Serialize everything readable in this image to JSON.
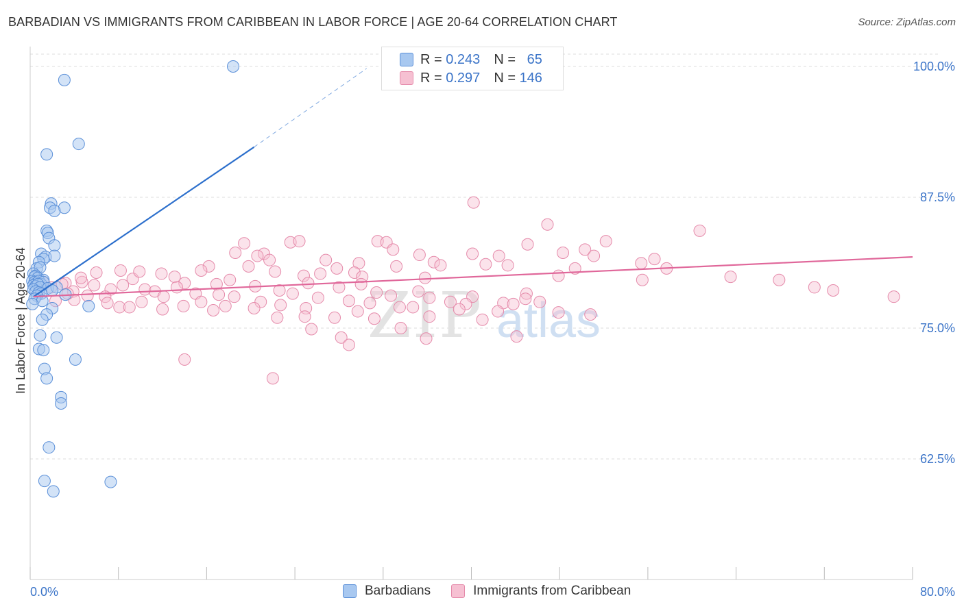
{
  "header": {
    "title": "BARBADIAN VS IMMIGRANTS FROM CARIBBEAN IN LABOR FORCE | AGE 20-64 CORRELATION CHART",
    "source": "Source: ZipAtlas.com"
  },
  "legend": {
    "r_label": "R =",
    "n_label": "N =",
    "series1_r": "0.243",
    "series1_n": "65",
    "series2_r": "0.297",
    "series2_n": "146"
  },
  "watermark": {
    "zip": "ZIP",
    "atlas": "atlas"
  },
  "colors": {
    "blue_fill": "#a8c8f0",
    "blue_stroke": "#5a8fd8",
    "blue_line": "#2c6fcc",
    "pink_fill": "#f6c0d2",
    "pink_stroke": "#e58aaa",
    "pink_line": "#e0679a",
    "tick_label": "#3b74c8",
    "grid": "#dddddd"
  },
  "chart_data": {
    "type": "scatter",
    "title": "BARBADIAN VS IMMIGRANTS FROM CARIBBEAN IN LABOR FORCE | AGE 20-64 CORRELATION CHART",
    "xlabel": "",
    "ylabel": "In Labor Force | Age 20-64",
    "xlim": [
      0,
      80
    ],
    "ylim": [
      50,
      102
    ],
    "x_tick_labels": [
      "0.0%",
      "80.0%"
    ],
    "y_ticks": [
      62.5,
      75.0,
      87.5,
      100.0
    ],
    "y_tick_labels": [
      "62.5%",
      "75.0%",
      "87.5%",
      "100.0%"
    ],
    "grid": true,
    "legend_position": "top-center",
    "series": [
      {
        "name": "Barbadians",
        "color": "#a8c8f0",
        "r": 0.243,
        "n": 65,
        "trend": {
          "x": [
            0.3,
            20.3
          ],
          "y": [
            78.0,
            92.3
          ],
          "dashed_to": [
            30.5,
            99.8
          ]
        },
        "points": [
          [
            18.4,
            100.0
          ],
          [
            3.1,
            98.7
          ],
          [
            4.4,
            92.6
          ],
          [
            1.5,
            91.6
          ],
          [
            1.9,
            86.9
          ],
          [
            1.8,
            86.5
          ],
          [
            3.1,
            86.5
          ],
          [
            2.2,
            86.2
          ],
          [
            1.5,
            84.3
          ],
          [
            1.6,
            84.1
          ],
          [
            1.7,
            83.6
          ],
          [
            2.2,
            82.9
          ],
          [
            1.0,
            82.1
          ],
          [
            1.4,
            81.8
          ],
          [
            1.2,
            81.6
          ],
          [
            2.2,
            81.9
          ],
          [
            0.8,
            81.3
          ],
          [
            0.6,
            80.7
          ],
          [
            0.9,
            80.8
          ],
          [
            0.3,
            80.2
          ],
          [
            0.5,
            80.0
          ],
          [
            0.4,
            79.9
          ],
          [
            0.7,
            79.8
          ],
          [
            1.2,
            79.6
          ],
          [
            0.2,
            79.5
          ],
          [
            0.4,
            79.4
          ],
          [
            0.6,
            79.3
          ],
          [
            0.8,
            79.5
          ],
          [
            1.0,
            79.2
          ],
          [
            1.2,
            79.4
          ],
          [
            0.3,
            79.1
          ],
          [
            0.5,
            79.0
          ],
          [
            0.7,
            79.2
          ],
          [
            0.9,
            78.9
          ],
          [
            0.3,
            78.7
          ],
          [
            1.6,
            78.8
          ],
          [
            0.5,
            78.5
          ],
          [
            0.8,
            78.4
          ],
          [
            2.4,
            78.9
          ],
          [
            2.0,
            78.6
          ],
          [
            1.0,
            78.3
          ],
          [
            0.6,
            78.1
          ],
          [
            3.2,
            78.2
          ],
          [
            0.4,
            77.8
          ],
          [
            1.1,
            77.6
          ],
          [
            0.2,
            77.3
          ],
          [
            5.3,
            77.1
          ],
          [
            2.0,
            76.9
          ],
          [
            1.5,
            76.3
          ],
          [
            1.1,
            75.8
          ],
          [
            0.9,
            74.3
          ],
          [
            2.4,
            74.1
          ],
          [
            0.8,
            73.0
          ],
          [
            1.2,
            72.9
          ],
          [
            4.1,
            72.0
          ],
          [
            1.3,
            71.1
          ],
          [
            1.5,
            70.2
          ],
          [
            2.8,
            68.4
          ],
          [
            2.8,
            67.8
          ],
          [
            1.7,
            63.6
          ],
          [
            1.3,
            60.4
          ],
          [
            7.3,
            60.3
          ],
          [
            2.1,
            59.4
          ]
        ]
      },
      {
        "name": "Immigrants from Caribbean",
        "color": "#f6c0d2",
        "r": 0.297,
        "n": 146,
        "trend": {
          "x": [
            0.3,
            80.0
          ],
          "y": [
            78.0,
            81.8
          ]
        },
        "points": [
          [
            40.2,
            87.0
          ],
          [
            46.9,
            84.9
          ],
          [
            60.7,
            84.3
          ],
          [
            19.4,
            83.1
          ],
          [
            23.6,
            83.2
          ],
          [
            24.4,
            83.3
          ],
          [
            31.5,
            83.3
          ],
          [
            32.3,
            83.2
          ],
          [
            45.1,
            83.0
          ],
          [
            52.2,
            83.3
          ],
          [
            50.3,
            82.5
          ],
          [
            32.9,
            82.5
          ],
          [
            35.3,
            82.0
          ],
          [
            21.2,
            82.1
          ],
          [
            20.6,
            81.9
          ],
          [
            18.6,
            82.2
          ],
          [
            40.1,
            82.1
          ],
          [
            42.5,
            81.9
          ],
          [
            48.3,
            82.2
          ],
          [
            51.1,
            81.9
          ],
          [
            56.6,
            81.6
          ],
          [
            26.8,
            81.5
          ],
          [
            36.6,
            81.3
          ],
          [
            29.8,
            81.2
          ],
          [
            21.7,
            81.5
          ],
          [
            41.3,
            81.1
          ],
          [
            37.2,
            81.0
          ],
          [
            43.3,
            81.0
          ],
          [
            55.4,
            81.2
          ],
          [
            27.8,
            80.7
          ],
          [
            19.8,
            80.9
          ],
          [
            33.2,
            80.9
          ],
          [
            16.2,
            80.9
          ],
          [
            49.4,
            80.7
          ],
          [
            26.3,
            80.2
          ],
          [
            15.5,
            80.5
          ],
          [
            47.9,
            80.0
          ],
          [
            22.2,
            80.4
          ],
          [
            24.8,
            80.0
          ],
          [
            29.4,
            80.3
          ],
          [
            57.7,
            80.7
          ],
          [
            11.9,
            80.2
          ],
          [
            8.2,
            80.5
          ],
          [
            13.1,
            79.9
          ],
          [
            30.1,
            79.9
          ],
          [
            35.8,
            79.8
          ],
          [
            9.3,
            79.7
          ],
          [
            4.7,
            79.4
          ],
          [
            3.2,
            79.3
          ],
          [
            18.1,
            79.6
          ],
          [
            14.0,
            79.3
          ],
          [
            5.8,
            79.1
          ],
          [
            16.9,
            79.2
          ],
          [
            30.0,
            79.2
          ],
          [
            25.2,
            79.3
          ],
          [
            20.4,
            79.0
          ],
          [
            28.0,
            78.9
          ],
          [
            8.4,
            79.1
          ],
          [
            13.3,
            78.9
          ],
          [
            7.3,
            78.7
          ],
          [
            10.4,
            78.7
          ],
          [
            3.9,
            78.5
          ],
          [
            11.3,
            78.5
          ],
          [
            15.0,
            78.3
          ],
          [
            17.1,
            78.2
          ],
          [
            22.6,
            78.6
          ],
          [
            23.8,
            78.3
          ],
          [
            31.4,
            78.4
          ],
          [
            35.2,
            78.5
          ],
          [
            45.0,
            78.3
          ],
          [
            55.5,
            79.6
          ],
          [
            63.5,
            79.9
          ],
          [
            67.9,
            79.6
          ],
          [
            71.1,
            78.9
          ],
          [
            72.8,
            78.6
          ],
          [
            78.3,
            78.0
          ],
          [
            6.8,
            78.0
          ],
          [
            12.1,
            78.0
          ],
          [
            18.5,
            78.0
          ],
          [
            26.1,
            77.9
          ],
          [
            32.7,
            78.1
          ],
          [
            36.2,
            77.9
          ],
          [
            40.1,
            78.0
          ],
          [
            44.9,
            77.8
          ],
          [
            2.3,
            77.6
          ],
          [
            4.0,
            77.7
          ],
          [
            10.1,
            77.5
          ],
          [
            15.5,
            77.5
          ],
          [
            20.9,
            77.5
          ],
          [
            28.9,
            77.6
          ],
          [
            38.1,
            77.5
          ],
          [
            42.9,
            77.4
          ],
          [
            46.2,
            77.5
          ],
          [
            8.1,
            77.0
          ],
          [
            13.9,
            77.1
          ],
          [
            17.7,
            77.1
          ],
          [
            22.7,
            77.2
          ],
          [
            30.8,
            77.4
          ],
          [
            33.5,
            77.0
          ],
          [
            39.5,
            77.3
          ],
          [
            43.8,
            77.3
          ],
          [
            12.0,
            76.8
          ],
          [
            16.6,
            76.7
          ],
          [
            20.3,
            76.9
          ],
          [
            25.0,
            76.9
          ],
          [
            29.7,
            76.6
          ],
          [
            34.7,
            77.0
          ],
          [
            38.9,
            76.8
          ],
          [
            42.4,
            76.6
          ],
          [
            47.9,
            76.5
          ],
          [
            50.8,
            76.3
          ],
          [
            36.2,
            76.1
          ],
          [
            24.9,
            76.1
          ],
          [
            22.4,
            76.0
          ],
          [
            27.6,
            76.0
          ],
          [
            31.2,
            75.9
          ],
          [
            41.0,
            75.8
          ],
          [
            33.6,
            75.0
          ],
          [
            25.5,
            74.9
          ],
          [
            44.1,
            74.2
          ],
          [
            35.9,
            74.0
          ],
          [
            28.2,
            74.1
          ],
          [
            28.9,
            73.4
          ],
          [
            14.0,
            72.0
          ],
          [
            22.0,
            70.2
          ],
          [
            6.0,
            80.3
          ],
          [
            9.9,
            80.4
          ],
          [
            4.6,
            79.8
          ],
          [
            1.2,
            79.4
          ],
          [
            1.9,
            78.9
          ],
          [
            0.8,
            78.7
          ],
          [
            2.9,
            79.2
          ],
          [
            3.4,
            78.3
          ],
          [
            5.2,
            78.1
          ],
          [
            7.0,
            77.4
          ],
          [
            9.0,
            77.0
          ]
        ]
      }
    ]
  },
  "bottom_legend": {
    "series1": "Barbadians",
    "series2": "Immigrants from Caribbean"
  }
}
